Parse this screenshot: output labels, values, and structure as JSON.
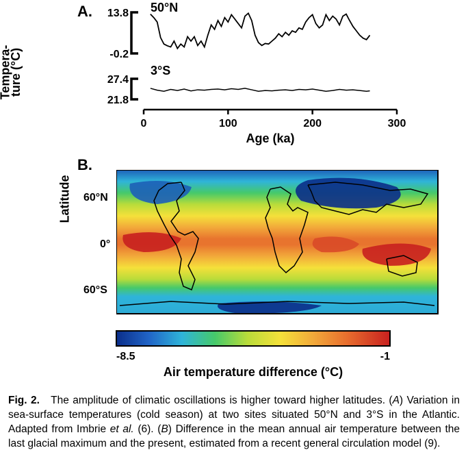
{
  "panelA": {
    "label": "A.",
    "ylabel": "Tempera-\nture (°C)",
    "xlabel": "Age (ka)",
    "xlim": [
      0,
      300
    ],
    "xticks": [
      0,
      100,
      200,
      300
    ],
    "series_50N": {
      "label": "50°N",
      "ytick_top": 13.8,
      "ytick_bottom": -0.2,
      "ylim": [
        -0.2,
        13.8
      ],
      "color": "#000000",
      "line_width": 1.8,
      "x": [
        8,
        12,
        16,
        20,
        24,
        28,
        32,
        36,
        40,
        44,
        48,
        52,
        56,
        60,
        64,
        68,
        72,
        76,
        80,
        84,
        88,
        92,
        96,
        100,
        104,
        108,
        112,
        116,
        120,
        124,
        128,
        132,
        136,
        140,
        144,
        148,
        152,
        156,
        160,
        164,
        168,
        172,
        176,
        180,
        184,
        188,
        192,
        196,
        200,
        204,
        208,
        212,
        216,
        220,
        224,
        228,
        232,
        236,
        240,
        244,
        248,
        252,
        256,
        260,
        264,
        268
      ],
      "y": [
        13.2,
        12.0,
        10.5,
        5.2,
        3.0,
        2.4,
        2.0,
        4.0,
        1.5,
        3.0,
        2.0,
        5.5,
        4.0,
        5.5,
        2.5,
        4.0,
        2.0,
        6.0,
        9.5,
        8.0,
        11.0,
        9.0,
        12.0,
        10.5,
        13.0,
        11.5,
        10.0,
        8.5,
        12.5,
        13.5,
        11.0,
        6.0,
        3.5,
        2.5,
        3.2,
        3.0,
        4.0,
        5.0,
        6.5,
        5.5,
        7.0,
        6.0,
        7.5,
        7.0,
        8.5,
        8.0,
        10.5,
        12.0,
        13.0,
        10.0,
        8.5,
        9.5,
        13.0,
        11.0,
        12.5,
        11.5,
        9.5,
        12.5,
        13.2,
        11.0,
        9.0,
        7.5,
        6.0,
        5.0,
        4.5,
        6.0
      ]
    },
    "series_3S": {
      "label": "3°S",
      "ytick_top": 27.4,
      "ytick_bottom": 21.8,
      "ylim": [
        21.8,
        27.4
      ],
      "color": "#000000",
      "line_width": 1.5,
      "x": [
        8,
        16,
        24,
        32,
        40,
        48,
        56,
        64,
        72,
        80,
        88,
        96,
        104,
        112,
        120,
        128,
        136,
        144,
        152,
        160,
        168,
        176,
        184,
        192,
        200,
        208,
        216,
        224,
        232,
        240,
        248,
        256,
        264,
        268
      ],
      "y": [
        24.8,
        24.3,
        24.0,
        24.5,
        24.2,
        24.6,
        24.1,
        24.4,
        24.3,
        24.5,
        24.6,
        24.4,
        24.7,
        24.5,
        24.8,
        24.4,
        24.0,
        24.2,
        24.1,
        24.3,
        24.4,
        24.2,
        24.5,
        24.4,
        24.6,
        24.3,
        24.0,
        24.2,
        24.5,
        24.3,
        24.4,
        24.2,
        24.0,
        24.1
      ]
    }
  },
  "panelB": {
    "label": "B.",
    "ylabel": "Latitude",
    "yticks": [
      "60°N",
      "0°",
      "60°S"
    ],
    "colorbar": {
      "label": "Air temperature difference (°C)",
      "min": -8.5,
      "max": -1.0,
      "stops": [
        [
          "0%",
          "#0b2e8a"
        ],
        [
          "12%",
          "#2165c7"
        ],
        [
          "24%",
          "#2fb4d9"
        ],
        [
          "36%",
          "#46c96a"
        ],
        [
          "48%",
          "#b9dc3a"
        ],
        [
          "60%",
          "#f5e03a"
        ],
        [
          "72%",
          "#f2a93a"
        ],
        [
          "84%",
          "#e86f2e"
        ],
        [
          "100%",
          "#c8201f"
        ]
      ]
    },
    "coast_color": "#000000",
    "coast_width": 1.5
  },
  "caption": {
    "fig_label": "Fig. 2.",
    "text_1": "The amplitude of climatic oscillations is higher toward higher latitudes. (",
    "a_lbl": "A",
    "text_2": ") Variation in sea-surface temperatures (cold season) at two sites situated 50°N and 3°S in the Atlantic. Adapted from Imbrie ",
    "etal": "et al.",
    "text_3": " (6). (",
    "b_lbl": "B",
    "text_4": ") Difference in the mean annual air temperature between the last glacial maximum and the present, estimated from a recent general circulation model (9)."
  }
}
